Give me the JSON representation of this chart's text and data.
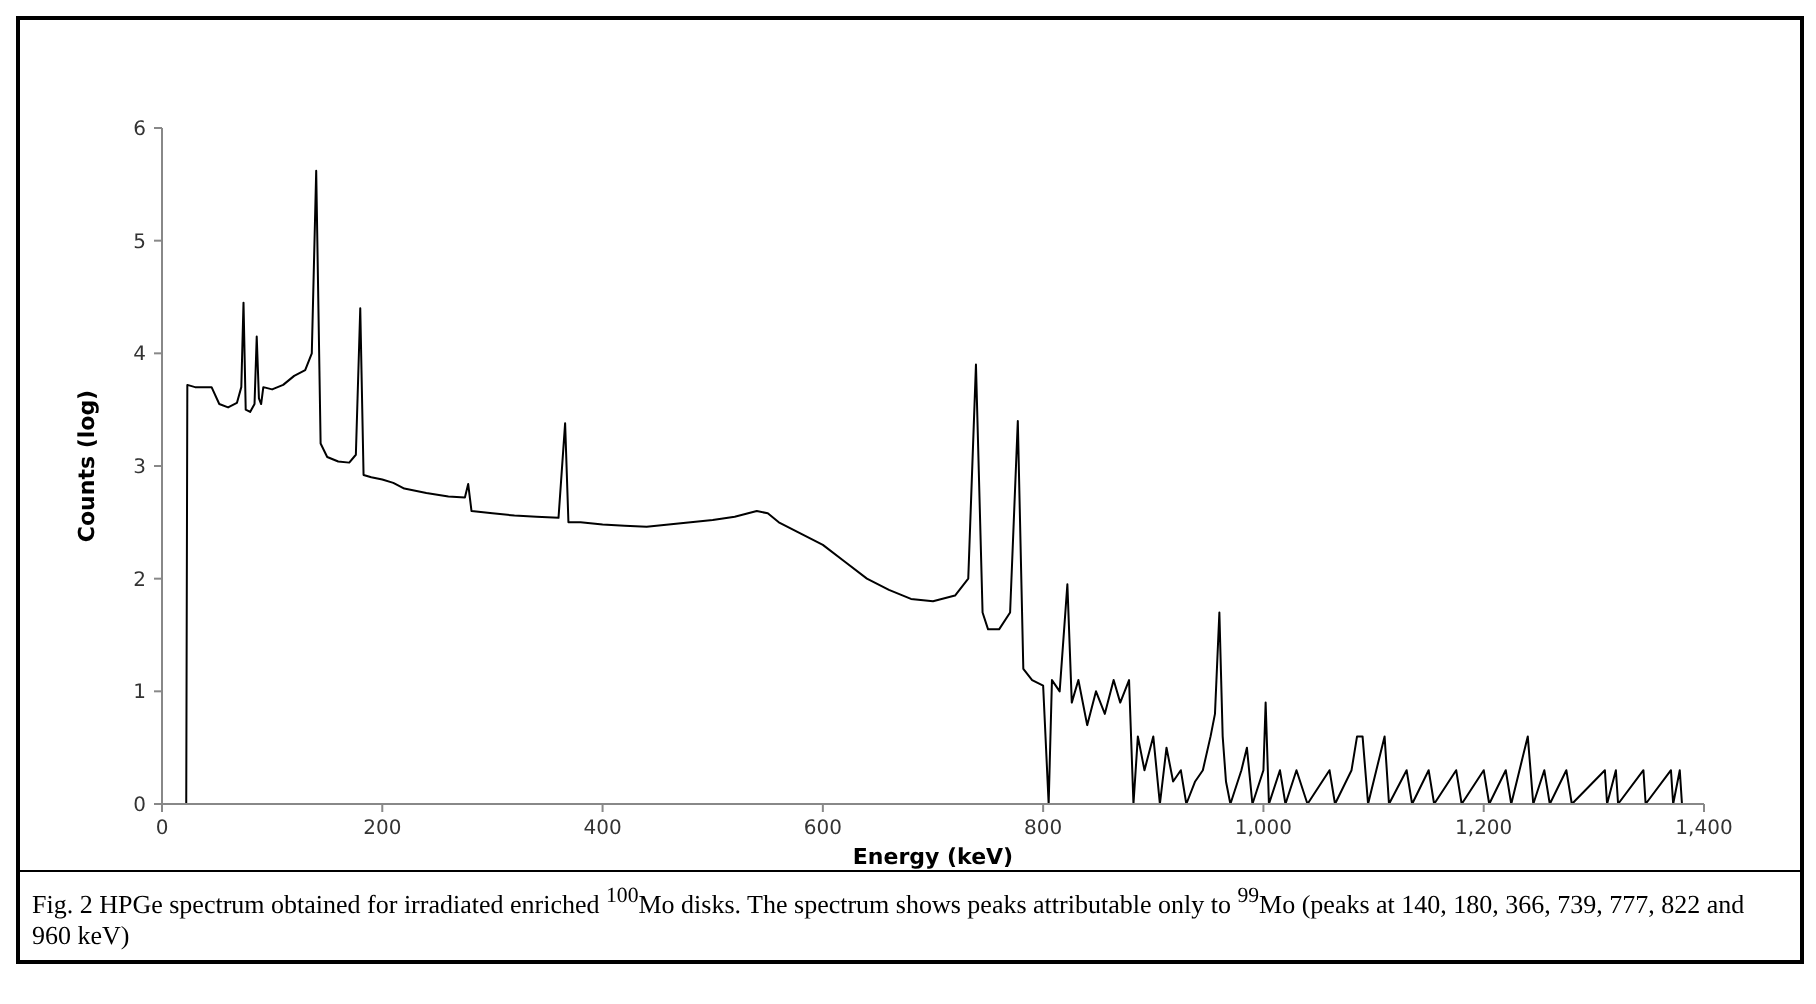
{
  "chart_data": {
    "type": "line",
    "xlabel": "Energy (keV)",
    "ylabel": "Counts (log)",
    "annotations": [
      "Fig. 2 HPGe spectrum obtained for irradiated enriched $^{100}$Mo disks. The spectrum shows peaks attributable only to $^{99}$Mo (peaks at 140, 180, 366, 739, 777, 822 and 960 keV)"
    ],
    "xlim": [
      0,
      1400
    ],
    "ylim": [
      0,
      6
    ],
    "xticks": [
      0,
      200,
      400,
      600,
      800,
      {
        "value": 1000,
        "label": "1,000"
      },
      {
        "value": 1200,
        "label": "1,200"
      },
      {
        "value": 1400,
        "label": "1,400"
      }
    ],
    "yticks": [
      0,
      1,
      2,
      3,
      4,
      5,
      6
    ],
    "grid": false,
    "marker": "none",
    "line_style": "solid",
    "series": [
      {
        "color": "#000000",
        "x": [
          22,
          23,
          30,
          45,
          52,
          60,
          68,
          72,
          74,
          76,
          80,
          84,
          86,
          88,
          90,
          92,
          100,
          110,
          120,
          130,
          136,
          140,
          144,
          150,
          160,
          170,
          176,
          180,
          183,
          190,
          200,
          210,
          220,
          240,
          260,
          275,
          278,
          281,
          300,
          320,
          340,
          360,
          366,
          369,
          380,
          400,
          420,
          440,
          460,
          480,
          500,
          520,
          540,
          550,
          560,
          580,
          600,
          620,
          640,
          660,
          680,
          700,
          720,
          732,
          739,
          745,
          750,
          760,
          770,
          777,
          782,
          790,
          800,
          805,
          808,
          815,
          822,
          826,
          832,
          840,
          848,
          856,
          864,
          870,
          878,
          882,
          886,
          892,
          900,
          906,
          912,
          918,
          925,
          930,
          938,
          945,
          952,
          956,
          960,
          963,
          966,
          970,
          980,
          985,
          990,
          1000,
          1002,
          1005,
          1015,
          1020,
          1030,
          1040,
          1060,
          1065,
          1080,
          1085,
          1090,
          1095,
          1110,
          1114,
          1130,
          1135,
          1150,
          1155,
          1175,
          1180,
          1200,
          1205,
          1220,
          1225,
          1240,
          1245,
          1255,
          1260,
          1275,
          1280,
          1310,
          1312,
          1320,
          1322,
          1345,
          1347,
          1370,
          1372,
          1378,
          1380
        ],
        "values": [
          0,
          3.72,
          3.7,
          3.7,
          3.55,
          3.52,
          3.56,
          3.7,
          4.45,
          3.5,
          3.48,
          3.55,
          4.15,
          3.6,
          3.55,
          3.7,
          3.68,
          3.72,
          3.8,
          3.85,
          4.0,
          5.62,
          3.2,
          3.08,
          3.04,
          3.03,
          3.1,
          4.4,
          2.92,
          2.9,
          2.88,
          2.85,
          2.8,
          2.76,
          2.73,
          2.72,
          2.84,
          2.6,
          2.58,
          2.56,
          2.55,
          2.54,
          3.38,
          2.5,
          2.5,
          2.48,
          2.47,
          2.46,
          2.48,
          2.5,
          2.52,
          2.55,
          2.6,
          2.58,
          2.5,
          2.4,
          2.3,
          2.15,
          2.0,
          1.9,
          1.82,
          1.8,
          1.85,
          2.0,
          3.9,
          1.7,
          1.55,
          1.55,
          1.7,
          3.4,
          1.2,
          1.1,
          1.05,
          0,
          1.1,
          1.0,
          1.95,
          0.9,
          1.1,
          0.7,
          1.0,
          0.8,
          1.1,
          0.9,
          1.1,
          0,
          0.6,
          0.3,
          0.6,
          0,
          0.5,
          0.2,
          0.3,
          0,
          0.2,
          0.3,
          0.6,
          0.8,
          1.7,
          0.6,
          0.2,
          0,
          0.3,
          0.5,
          0,
          0.3,
          0.9,
          0,
          0.3,
          0,
          0.3,
          0,
          0.3,
          0,
          0.3,
          0.6,
          0.6,
          0,
          0.6,
          0,
          0.3,
          0,
          0.3,
          0,
          0.3,
          0,
          0.3,
          0,
          0.3,
          0,
          0.6,
          0,
          0.3,
          0,
          0.3,
          0,
          0.3,
          0,
          0.3,
          0,
          0.3,
          0,
          0.3,
          0,
          0.3,
          0
        ]
      }
    ]
  }
}
